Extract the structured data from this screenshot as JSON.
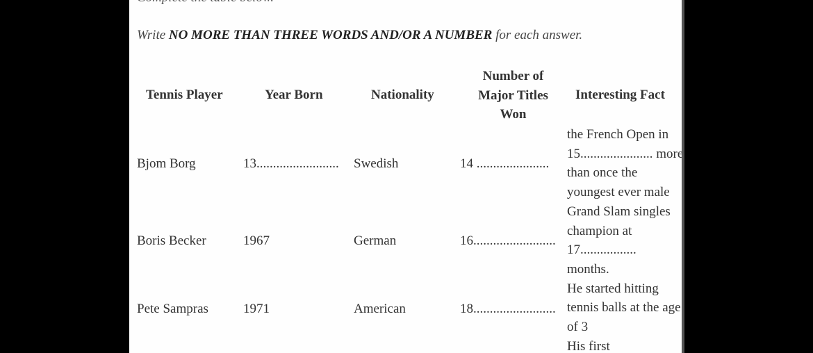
{
  "intro": "Complete the table below.",
  "instruction": {
    "prefix": "Write ",
    "bold": "NO MORE THAN THREE WORDS AND/OR A NUMBER",
    "suffix": " for each answer."
  },
  "table": {
    "headers": [
      "Tennis Player",
      "Year Born",
      "Nationality",
      "Number of Major Titles Won",
      "Interesting Fact"
    ],
    "header_titles_lines": [
      "Number of",
      "Major Titles",
      "Won"
    ],
    "rows": [
      {
        "player": "Bjom Borg",
        "year": "13.........................",
        "nationality": "Swedish",
        "titles": "14 ......................",
        "fact": [
          "the French Open in",
          "15...................... more",
          "than once the"
        ]
      },
      {
        "player": "Boris Becker",
        "year": "1967",
        "nationality": "German",
        "titles": "16.........................",
        "fact": [
          "youngest ever male",
          "Grand Slam singles",
          "champion at",
          "17.................",
          "months."
        ]
      },
      {
        "player": "Pete Sampras",
        "year": "1971",
        "nationality": "American",
        "titles": "18.........................",
        "fact": [
          "He started hitting",
          "tennis balls at the age",
          "of 3"
        ]
      },
      {
        "fact": [
          "His first"
        ]
      }
    ]
  }
}
